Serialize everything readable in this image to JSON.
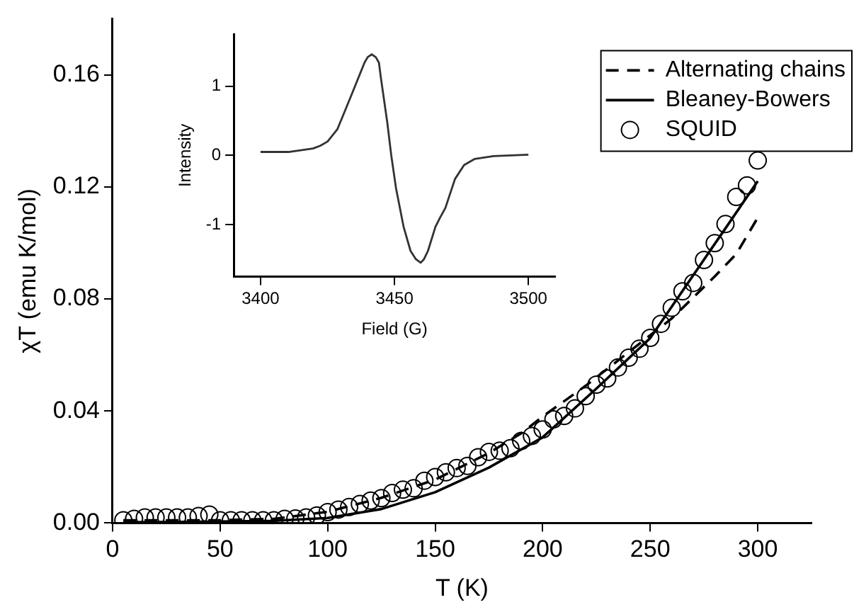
{
  "chart_data": [
    {
      "type": "scatter",
      "xlabel": "T (K)",
      "ylabel": "χT (emu K/mol)",
      "xlim": [
        0,
        325
      ],
      "ylim": [
        0,
        0.18
      ],
      "xticks": [
        0,
        50,
        100,
        150,
        200,
        250,
        300
      ],
      "yticks": [
        {
          "value": 0,
          "label": "0.00"
        },
        0.04,
        0.08,
        0.12,
        0.16
      ],
      "grid": false,
      "legend": "top right",
      "series": [
        {
          "name": "Alternating chains",
          "type": "line",
          "color": "#000000",
          "line_style": "dashed",
          "marker": "none",
          "x": [
            5,
            50,
            75,
            100,
            125,
            150,
            175,
            190,
            200,
            220,
            240,
            260,
            280,
            290,
            300
          ],
          "values": [
            0.001,
            0.001,
            0.0015,
            0.004,
            0.009,
            0.0155,
            0.025,
            0.032,
            0.038,
            0.049,
            0.061,
            0.073,
            0.088,
            0.096,
            0.109
          ]
        },
        {
          "name": "Bleaney-Bowers",
          "type": "line",
          "color": "#000000",
          "line_style": "solid",
          "marker": "none",
          "x": [
            5,
            50,
            75,
            100,
            125,
            150,
            175,
            200,
            225,
            250,
            275,
            300
          ],
          "values": [
            0.0003,
            0.0005,
            0.0008,
            0.0018,
            0.005,
            0.011,
            0.0198,
            0.0306,
            0.048,
            0.066,
            0.094,
            0.122
          ]
        },
        {
          "name": "SQUID",
          "type": "scatter",
          "color": "#000000",
          "marker": "circle",
          "x": [
            5,
            10,
            15,
            20,
            25,
            30,
            35,
            40,
            45,
            50,
            55,
            60,
            65,
            70,
            75,
            80,
            85,
            90,
            95,
            100,
            105,
            110,
            115,
            120,
            125,
            130,
            135,
            140,
            145,
            150,
            155,
            160,
            165,
            170,
            175,
            180,
            185,
            190,
            195,
            200,
            205,
            210,
            215,
            220,
            225,
            230,
            235,
            240,
            245,
            250,
            255,
            260,
            265,
            270,
            275,
            280,
            285,
            290,
            295,
            300
          ],
          "values": [
            0.001,
            0.0015,
            0.002,
            0.002,
            0.002,
            0.002,
            0.002,
            0.0025,
            0.003,
            0.001,
            0.001,
            0.001,
            0.001,
            0.001,
            0.001,
            0.0015,
            0.0016,
            0.002,
            0.0027,
            0.0039,
            0.0048,
            0.0057,
            0.0068,
            0.008,
            0.0089,
            0.0107,
            0.0119,
            0.0124,
            0.0151,
            0.0164,
            0.0181,
            0.0196,
            0.0204,
            0.0235,
            0.0254,
            0.0258,
            0.0267,
            0.0293,
            0.0311,
            0.0334,
            0.037,
            0.0382,
            0.0409,
            0.0453,
            0.0494,
            0.0516,
            0.0555,
            0.059,
            0.0622,
            0.0661,
            0.0711,
            0.0768,
            0.0827,
            0.0857,
            0.0939,
            0.0999,
            0.1067,
            0.1164,
            0.1205,
            0.1294
          ]
        }
      ]
    },
    {
      "type": "line",
      "xlabel": "Field (G)",
      "ylabel": "Intensity",
      "xlim": [
        3390,
        3510
      ],
      "ylim": [
        -1.75,
        1.75
      ],
      "xticks": [
        3400,
        3450,
        3500
      ],
      "yticks": [
        -1,
        0,
        1
      ],
      "grid": false,
      "series": [
        {
          "color": "#333333",
          "x": [
            3400,
            3410.4,
            3419.6,
            3422.3,
            3425,
            3428.7,
            3432,
            3434,
            3436,
            3438.8,
            3440,
            3441.5,
            3443,
            3444.2,
            3445,
            3446,
            3447.3,
            3448.8,
            3450.6,
            3453.4,
            3456,
            3458,
            3459.8,
            3461,
            3462.5,
            3465.3,
            3467,
            3469,
            3472.6,
            3476,
            3480,
            3487,
            3500
          ],
          "values": [
            0.05,
            0.05,
            0.1,
            0.14,
            0.2,
            0.38,
            0.69,
            0.88,
            1.07,
            1.34,
            1.42,
            1.46,
            1.42,
            1.34,
            1.1,
            0.83,
            0.48,
            0,
            -0.48,
            -1.03,
            -1.38,
            -1.5,
            -1.55,
            -1.5,
            -1.38,
            -1.03,
            -0.9,
            -0.76,
            -0.34,
            -0.14,
            -0.05,
            -0.01,
            0.01
          ]
        }
      ]
    }
  ]
}
